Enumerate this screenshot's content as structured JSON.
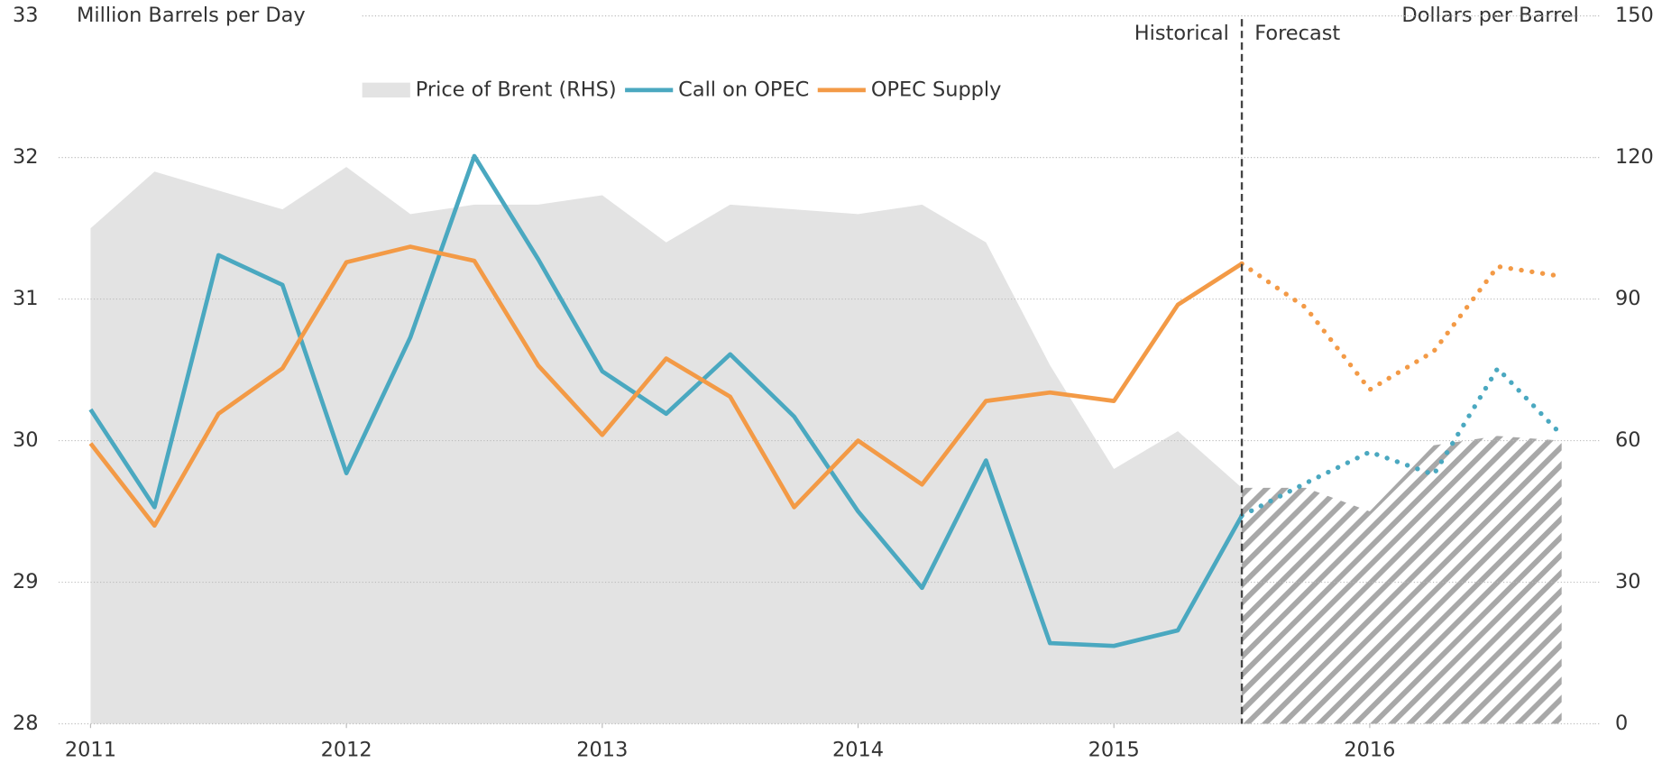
{
  "chart_data": {
    "type": "line",
    "y_label": "Million Barrels per Day",
    "y2_label": "Dollars per Barrel",
    "x": [
      2011,
      2011.25,
      2011.5,
      2011.75,
      2012,
      2012.25,
      2012.5,
      2012.75,
      2013,
      2013.25,
      2013.5,
      2013.75,
      2014,
      2014.25,
      2014.5,
      2014.75,
      2015,
      2015.25,
      2015.5,
      2015.75,
      2016,
      2016.25,
      2016.5,
      2016.75
    ],
    "xlim": [
      2010.875,
      2016.88
    ],
    "xticks": [
      2011,
      2012,
      2013,
      2014,
      2015,
      2016
    ],
    "ylim": [
      28,
      33
    ],
    "yticks": [
      28,
      29,
      30,
      31,
      32,
      33
    ],
    "y2lim": [
      0,
      150
    ],
    "y2ticks": [
      0,
      30,
      60,
      90,
      120,
      150
    ],
    "grid": true,
    "annotation": {
      "x": 2015.5,
      "left": "Historical",
      "right": "Forecast"
    },
    "series": [
      {
        "name": "Price of Brent (RHS)",
        "kind": "area",
        "axis": "y2",
        "color": "#e3e3e3",
        "forecast_color": "#a8a8a8",
        "values": [
          105,
          117,
          113,
          109,
          118,
          108,
          110,
          110,
          112,
          102,
          110,
          109,
          108,
          110,
          102,
          76,
          54,
          62,
          50,
          null,
          null,
          null,
          null,
          null
        ],
        "forecast": [
          null,
          null,
          null,
          null,
          null,
          null,
          null,
          null,
          null,
          null,
          null,
          null,
          null,
          null,
          null,
          null,
          null,
          null,
          null,
          50,
          45,
          59,
          61,
          60
        ]
      },
      {
        "name": "Call on OPEC",
        "kind": "line",
        "color": "#4aa8c0",
        "values": [
          30.22,
          29.53,
          31.31,
          31.1,
          29.77,
          30.73,
          32.01,
          31.28,
          30.49,
          30.19,
          30.61,
          30.17,
          29.5,
          28.96,
          29.86,
          28.57,
          28.55,
          28.66,
          29.47,
          null,
          null,
          null,
          null,
          null
        ],
        "forecast": [
          null,
          null,
          null,
          null,
          null,
          null,
          null,
          null,
          null,
          null,
          null,
          null,
          null,
          null,
          null,
          null,
          null,
          null,
          null,
          29.7,
          29.92,
          29.76,
          30.51,
          30.04
        ]
      },
      {
        "name": "OPEC Supply",
        "kind": "line",
        "color": "#f39a46",
        "values": [
          29.98,
          29.4,
          30.19,
          30.51,
          31.26,
          31.37,
          31.27,
          30.53,
          30.04,
          30.58,
          30.31,
          29.53,
          30,
          29.69,
          30.28,
          30.34,
          30.28,
          30.96,
          31.25,
          null,
          null,
          null,
          null,
          null
        ],
        "forecast": [
          null,
          null,
          null,
          null,
          null,
          null,
          null,
          null,
          null,
          null,
          null,
          null,
          null,
          null,
          null,
          null,
          null,
          null,
          null,
          30.94,
          30.36,
          30.63,
          31.23,
          31.16
        ]
      }
    ]
  }
}
